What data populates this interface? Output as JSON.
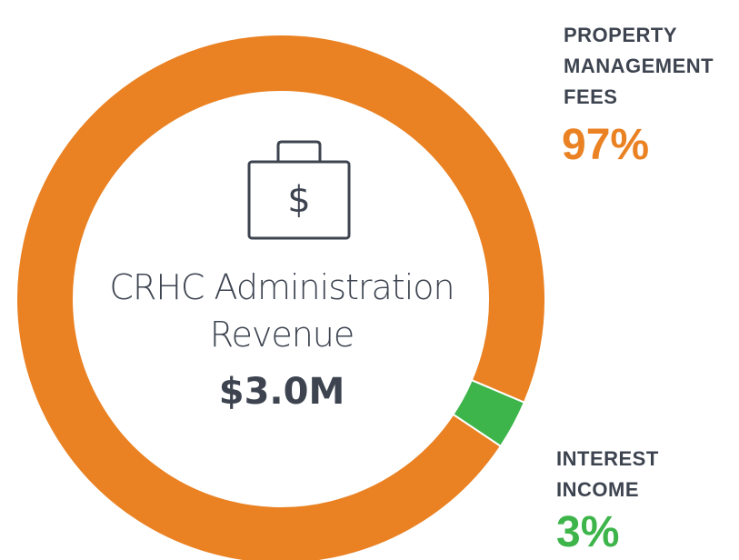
{
  "chart_data": {
    "type": "donut",
    "center_title": "CRHC Administration Revenue",
    "total": "$3.0M",
    "categories": [
      "PROPERTY MANAGEMENT FEES",
      "INTEREST INCOME"
    ],
    "values": [
      97,
      3
    ],
    "value_labels": [
      "97%",
      "3%"
    ],
    "colors": [
      "#ea8122",
      "#3db54a"
    ]
  }
}
